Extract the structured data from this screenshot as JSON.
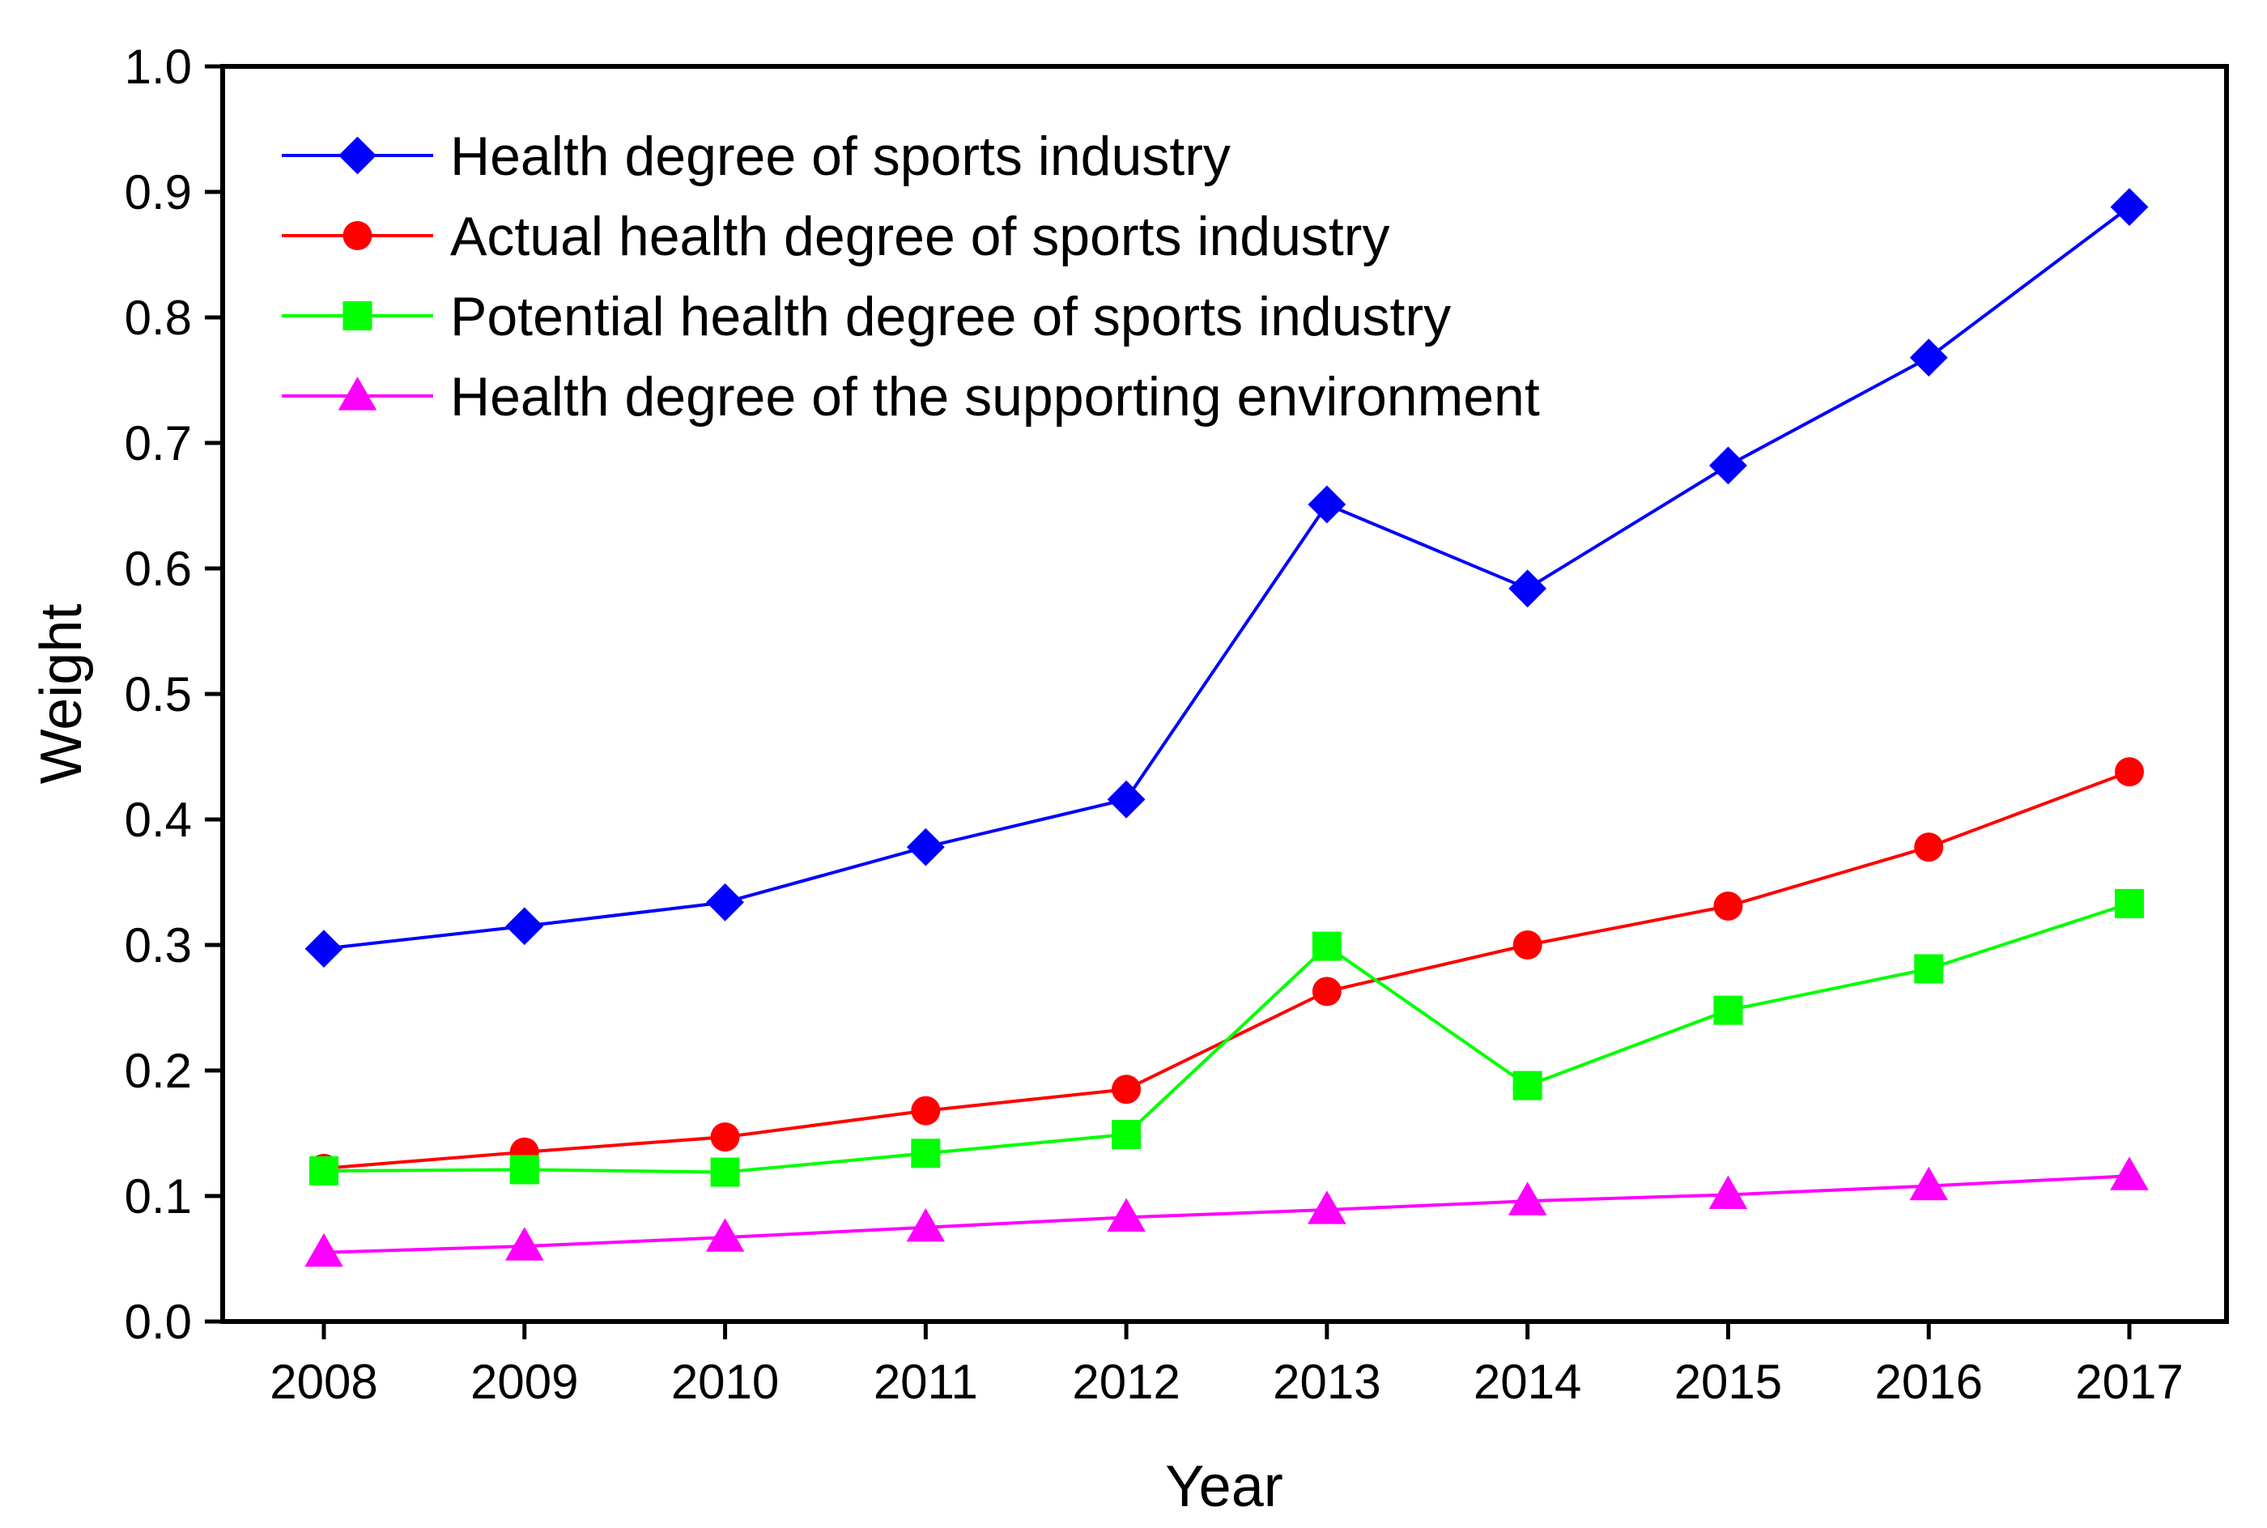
{
  "chart_data": {
    "type": "line",
    "title": "",
    "xlabel": "Year",
    "ylabel": "Weight",
    "x": [
      "2008",
      "2009",
      "2010",
      "2011",
      "2012",
      "2013",
      "2014",
      "2015",
      "2016",
      "2017"
    ],
    "ylim": [
      0.0,
      1.0
    ],
    "yticks": [
      "0.0",
      "0.1",
      "0.2",
      "0.3",
      "0.4",
      "0.5",
      "0.6",
      "0.7",
      "0.8",
      "0.9",
      "1.0"
    ],
    "grid": false,
    "legend_position": "top-left",
    "series": [
      {
        "name": "Health degree of sports industry",
        "color": "#0000ff",
        "marker": "diamond",
        "values": [
          0.297,
          0.315,
          0.334,
          0.378,
          0.416,
          0.651,
          0.584,
          0.682,
          0.768,
          0.888
        ]
      },
      {
        "name": "Actual health degree of sports industry",
        "color": "#ff0000",
        "marker": "circle",
        "values": [
          0.122,
          0.135,
          0.147,
          0.168,
          0.185,
          0.263,
          0.3,
          0.331,
          0.378,
          0.438
        ]
      },
      {
        "name": "Potential health degree of sports industry",
        "color": "#00ff00",
        "marker": "square",
        "values": [
          0.12,
          0.121,
          0.119,
          0.134,
          0.149,
          0.299,
          0.188,
          0.248,
          0.281,
          0.333
        ]
      },
      {
        "name": "Health degree of the supporting environment",
        "color": "#ff00ff",
        "marker": "triangle",
        "values": [
          0.055,
          0.06,
          0.067,
          0.075,
          0.083,
          0.089,
          0.096,
          0.101,
          0.108,
          0.116
        ]
      }
    ]
  }
}
